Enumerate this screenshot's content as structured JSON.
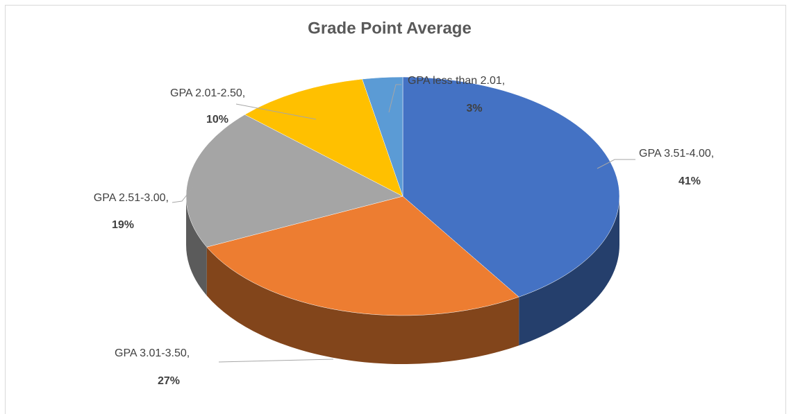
{
  "chart_data": {
    "type": "pie",
    "title": "Grade Point Average",
    "categories": [
      "GPA 3.51-4.00,",
      "GPA 3.01-3.50,",
      "GPA 2.51-3.00,",
      "GPA 2.01-2.50,",
      "GPA less than 2.01,"
    ],
    "values": [
      41,
      27,
      19,
      10,
      3
    ],
    "value_labels": [
      "41%",
      "27%",
      "19%",
      "10%",
      "3%"
    ],
    "colors": [
      "#4472c4",
      "#ed7d31",
      "#a5a5a5",
      "#ffc000",
      "#5b9bd5"
    ]
  }
}
